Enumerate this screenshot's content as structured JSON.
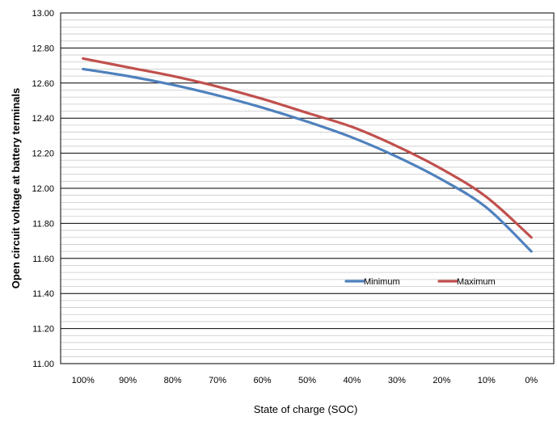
{
  "chart_data": {
    "type": "line",
    "title": "",
    "xlabel": "State of  charge (SOC)",
    "ylabel": "Open circuit voltage at battery terminals",
    "categories": [
      "100%",
      "90%",
      "80%",
      "70%",
      "60%",
      "50%",
      "40%",
      "30%",
      "20%",
      "10%",
      "0%"
    ],
    "ylim": [
      11.0,
      13.0
    ],
    "yticks": [
      "11.00",
      "11.20",
      "11.40",
      "11.60",
      "11.80",
      "12.00",
      "12.20",
      "12.40",
      "12.60",
      "12.80",
      "13.00"
    ],
    "grid": true,
    "legend_position": "lower-right",
    "series": [
      {
        "name": "Minimum",
        "color": "#4f81bd",
        "values": [
          12.68,
          12.64,
          12.59,
          12.53,
          12.46,
          12.38,
          12.29,
          12.18,
          12.05,
          11.89,
          11.64
        ]
      },
      {
        "name": "Maximum",
        "color": "#c0504d",
        "values": [
          12.74,
          12.69,
          12.64,
          12.58,
          12.51,
          12.43,
          12.35,
          12.24,
          12.11,
          11.95,
          11.72
        ]
      }
    ]
  }
}
